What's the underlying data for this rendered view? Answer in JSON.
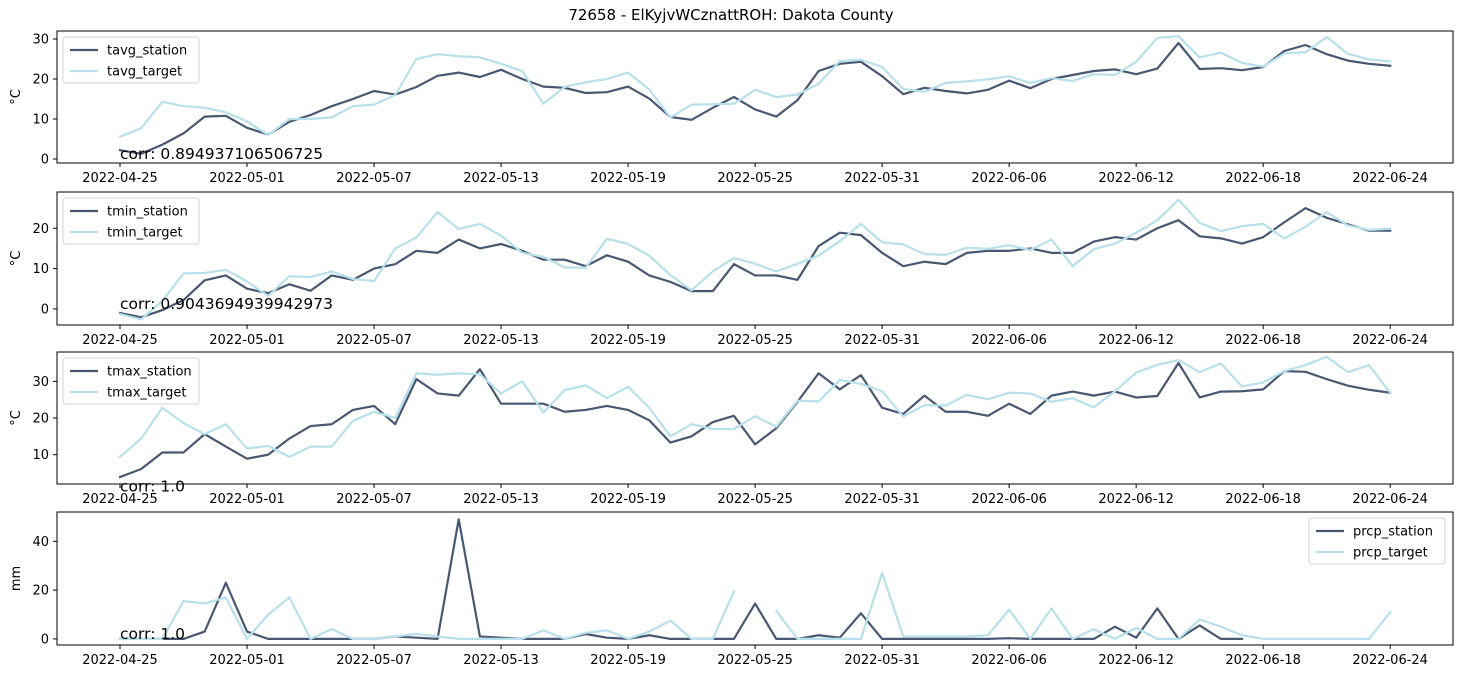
{
  "title": "72658 - ElKyjvWCznattROH: Dakota County",
  "chart_data": [
    {
      "type": "line",
      "ylabel": "°C",
      "ylim": [
        -1,
        32
      ],
      "yticks": [
        0,
        10,
        20,
        30
      ],
      "legend_position": "upper-left",
      "annotation": "corr: 0.894937106506725",
      "x_tick_labels": [
        "2022-04-25",
        "2022-05-01",
        "2022-05-07",
        "2022-05-13",
        "2022-05-19",
        "2022-05-25",
        "2022-05-31",
        "2022-06-06",
        "2022-06-12",
        "2022-06-18",
        "2022-06-24"
      ],
      "series": [
        {
          "name": "tavg_station",
          "color": "#485872",
          "values": [
            2.2,
            1.3,
            3.6,
            6.4,
            10.6,
            10.8,
            7.8,
            6.1,
            9.3,
            11.0,
            13.2,
            15.0,
            17.0,
            16.1,
            18.0,
            20.8,
            21.6,
            20.5,
            22.3,
            20.0,
            18.1,
            17.8,
            16.5,
            16.7,
            18.1,
            15.1,
            10.5,
            9.8,
            12.8,
            15.5,
            12.4,
            10.6,
            14.7,
            22.0,
            23.8,
            24.3,
            20.7,
            16.2,
            17.8,
            17.0,
            16.4,
            17.3,
            19.6,
            17.7,
            20.0,
            21.0,
            22.0,
            22.4,
            21.2,
            22.6,
            29.0,
            22.5,
            22.7,
            22.2,
            23.0,
            27.0,
            28.5,
            26.2,
            24.6,
            23.8,
            23.3
          ]
        },
        {
          "name": "tavg_target",
          "color": "#b8e0ea",
          "values": [
            5.6,
            7.7,
            14.3,
            13.2,
            12.8,
            11.7,
            9.4,
            6.0,
            10.0,
            10.0,
            10.4,
            13.2,
            13.6,
            16.0,
            25.0,
            26.2,
            25.7,
            25.4,
            23.8,
            22.0,
            13.8,
            18.0,
            19.2,
            20.0,
            21.6,
            17.4,
            10.4,
            13.6,
            13.7,
            13.8,
            17.3,
            15.5,
            16.1,
            18.8,
            24.5,
            24.8,
            23.0,
            17.5,
            16.8,
            19.0,
            19.4,
            19.9,
            20.7,
            19.0,
            20.2,
            19.5,
            21.2,
            21.0,
            24.3,
            30.3,
            30.7,
            25.4,
            26.6,
            24.0,
            23.1,
            26.4,
            26.7,
            30.5,
            26.3,
            24.9,
            24.4
          ]
        }
      ]
    },
    {
      "type": "line",
      "ylabel": "°C",
      "ylim": [
        -4,
        29
      ],
      "yticks": [
        0,
        10,
        20
      ],
      "legend_position": "upper-left",
      "annotation": "corr: 0.9043694939942973",
      "x_tick_labels": [
        "2022-04-25",
        "2022-05-01",
        "2022-05-07",
        "2022-05-13",
        "2022-05-19",
        "2022-05-25",
        "2022-05-31",
        "2022-06-06",
        "2022-06-12",
        "2022-06-18",
        "2022-06-24"
      ],
      "series": [
        {
          "name": "tmin_station",
          "color": "#485872",
          "values": [
            -1.0,
            -2.1,
            -0.3,
            2.2,
            7.1,
            8.3,
            5.0,
            3.9,
            6.1,
            4.5,
            8.3,
            7.2,
            10.0,
            11.1,
            14.4,
            13.9,
            17.2,
            15.0,
            16.1,
            14.4,
            12.2,
            12.2,
            10.6,
            13.3,
            11.7,
            8.3,
            6.7,
            4.4,
            4.4,
            11.1,
            8.3,
            8.3,
            7.2,
            15.6,
            18.9,
            18.3,
            13.9,
            10.6,
            11.7,
            11.1,
            13.9,
            14.4,
            14.4,
            15.0,
            13.9,
            13.9,
            16.7,
            17.8,
            17.2,
            20.0,
            22.0,
            18.0,
            17.5,
            16.2,
            17.8,
            21.5,
            25.0,
            22.6,
            21.0,
            19.4,
            19.4
          ]
        },
        {
          "name": "tmin_target",
          "color": "#b8e0ea",
          "values": [
            -1.3,
            -2.6,
            2.0,
            8.8,
            8.9,
            9.7,
            6.8,
            3.2,
            8.1,
            7.9,
            9.3,
            7.4,
            6.9,
            15.0,
            17.7,
            24.0,
            19.8,
            21.1,
            18.2,
            13.9,
            12.9,
            10.3,
            10.2,
            17.4,
            16.1,
            13.2,
            8.4,
            4.6,
            9.3,
            12.6,
            11.2,
            9.3,
            11.2,
            13.2,
            16.8,
            21.1,
            16.5,
            16.0,
            13.6,
            13.4,
            15.2,
            14.9,
            15.8,
            14.6,
            17.2,
            10.6,
            14.8,
            16.2,
            18.9,
            22.0,
            27.1,
            21.3,
            19.3,
            20.5,
            21.1,
            17.5,
            20.4,
            24.0,
            20.7,
            19.6,
            19.9
          ]
        }
      ]
    },
    {
      "type": "line",
      "ylabel": "°C",
      "ylim": [
        2,
        38
      ],
      "yticks": [
        10,
        20,
        30
      ],
      "legend_position": "upper-left",
      "annotation": "corr: 1.0",
      "x_tick_labels": [
        "2022-04-25",
        "2022-05-01",
        "2022-05-07",
        "2022-05-13",
        "2022-05-19",
        "2022-05-25",
        "2022-05-31",
        "2022-06-06",
        "2022-06-12",
        "2022-06-18",
        "2022-06-24"
      ],
      "series": [
        {
          "name": "tmax_station",
          "color": "#485872",
          "values": [
            3.9,
            6.1,
            10.6,
            10.6,
            15.6,
            12.2,
            8.9,
            10.0,
            14.4,
            17.8,
            18.3,
            22.2,
            23.3,
            18.3,
            30.6,
            26.7,
            26.1,
            33.3,
            23.9,
            23.9,
            23.9,
            21.7,
            22.2,
            23.3,
            22.2,
            19.4,
            13.3,
            15.0,
            18.9,
            20.6,
            12.8,
            17.2,
            24.4,
            32.2,
            27.8,
            31.7,
            22.8,
            21.1,
            26.1,
            21.7,
            21.7,
            20.6,
            23.9,
            21.1,
            26.1,
            27.2,
            26.1,
            27.2,
            25.6,
            26.0,
            35.0,
            25.6,
            27.2,
            27.3,
            27.8,
            32.8,
            32.6,
            30.6,
            28.8,
            27.7,
            26.9
          ]
        },
        {
          "name": "tmax_target",
          "color": "#b8e0ea",
          "values": [
            9.4,
            14.4,
            22.8,
            18.6,
            15.6,
            18.3,
            11.7,
            12.4,
            9.4,
            12.2,
            12.2,
            19.2,
            21.7,
            20.0,
            32.2,
            31.8,
            32.2,
            31.9,
            26.7,
            30.0,
            21.5,
            27.6,
            28.9,
            25.4,
            28.5,
            22.8,
            15.0,
            18.3,
            17.0,
            17.0,
            20.5,
            17.6,
            24.7,
            24.5,
            30.4,
            29.3,
            27.3,
            20.4,
            23.5,
            23.4,
            26.3,
            25.1,
            26.9,
            26.7,
            24.4,
            25.4,
            22.9,
            27.3,
            32.4,
            34.5,
            35.8,
            32.5,
            34.9,
            28.6,
            29.7,
            32.8,
            34.4,
            36.7,
            32.5,
            34.4,
            26.9
          ]
        }
      ]
    },
    {
      "type": "line",
      "ylabel": "mm",
      "ylim": [
        -2.5,
        52
      ],
      "yticks": [
        0,
        20,
        40
      ],
      "legend_position": "upper-right",
      "annotation": "corr: 1.0",
      "x_tick_labels": [
        "2022-04-25",
        "2022-05-01",
        "2022-05-07",
        "2022-05-13",
        "2022-05-19",
        "2022-05-25",
        "2022-05-31",
        "2022-06-06",
        "2022-06-12",
        "2022-06-18",
        "2022-06-24"
      ],
      "series": [
        {
          "name": "prcp_station",
          "color": "#485872",
          "values": [
            0,
            0,
            0,
            0,
            3,
            23,
            3,
            0,
            0,
            0,
            0,
            0,
            0,
            1,
            0.5,
            0,
            49,
            1,
            0.5,
            0,
            0,
            0,
            2,
            0.5,
            0,
            1.5,
            0,
            0,
            0,
            0,
            14.5,
            0,
            0,
            1.5,
            0.5,
            10.5,
            0,
            0,
            0,
            0,
            0,
            0,
            0.3,
            0,
            0,
            0,
            0,
            5,
            0.5,
            12.5,
            0,
            5.5,
            0,
            0,
            null,
            null,
            null,
            null,
            null,
            null,
            null
          ]
        },
        {
          "name": "prcp_target",
          "color": "#b8e0ea",
          "values": [
            0,
            0,
            0,
            15.5,
            14.5,
            17,
            0,
            10,
            17,
            0,
            4,
            0,
            0,
            1,
            2,
            1,
            0,
            0,
            0,
            0,
            3.5,
            0,
            2.5,
            3.5,
            0,
            3,
            7.5,
            0,
            0,
            19.5,
            null,
            11.5,
            0,
            0,
            0,
            0,
            27,
            1,
            1,
            1,
            1,
            1.5,
            12,
            0,
            12.5,
            0,
            4,
            0,
            4.5,
            0,
            0,
            8,
            5,
            1.5,
            0,
            0,
            0,
            0,
            0,
            0,
            11
          ]
        }
      ]
    }
  ]
}
